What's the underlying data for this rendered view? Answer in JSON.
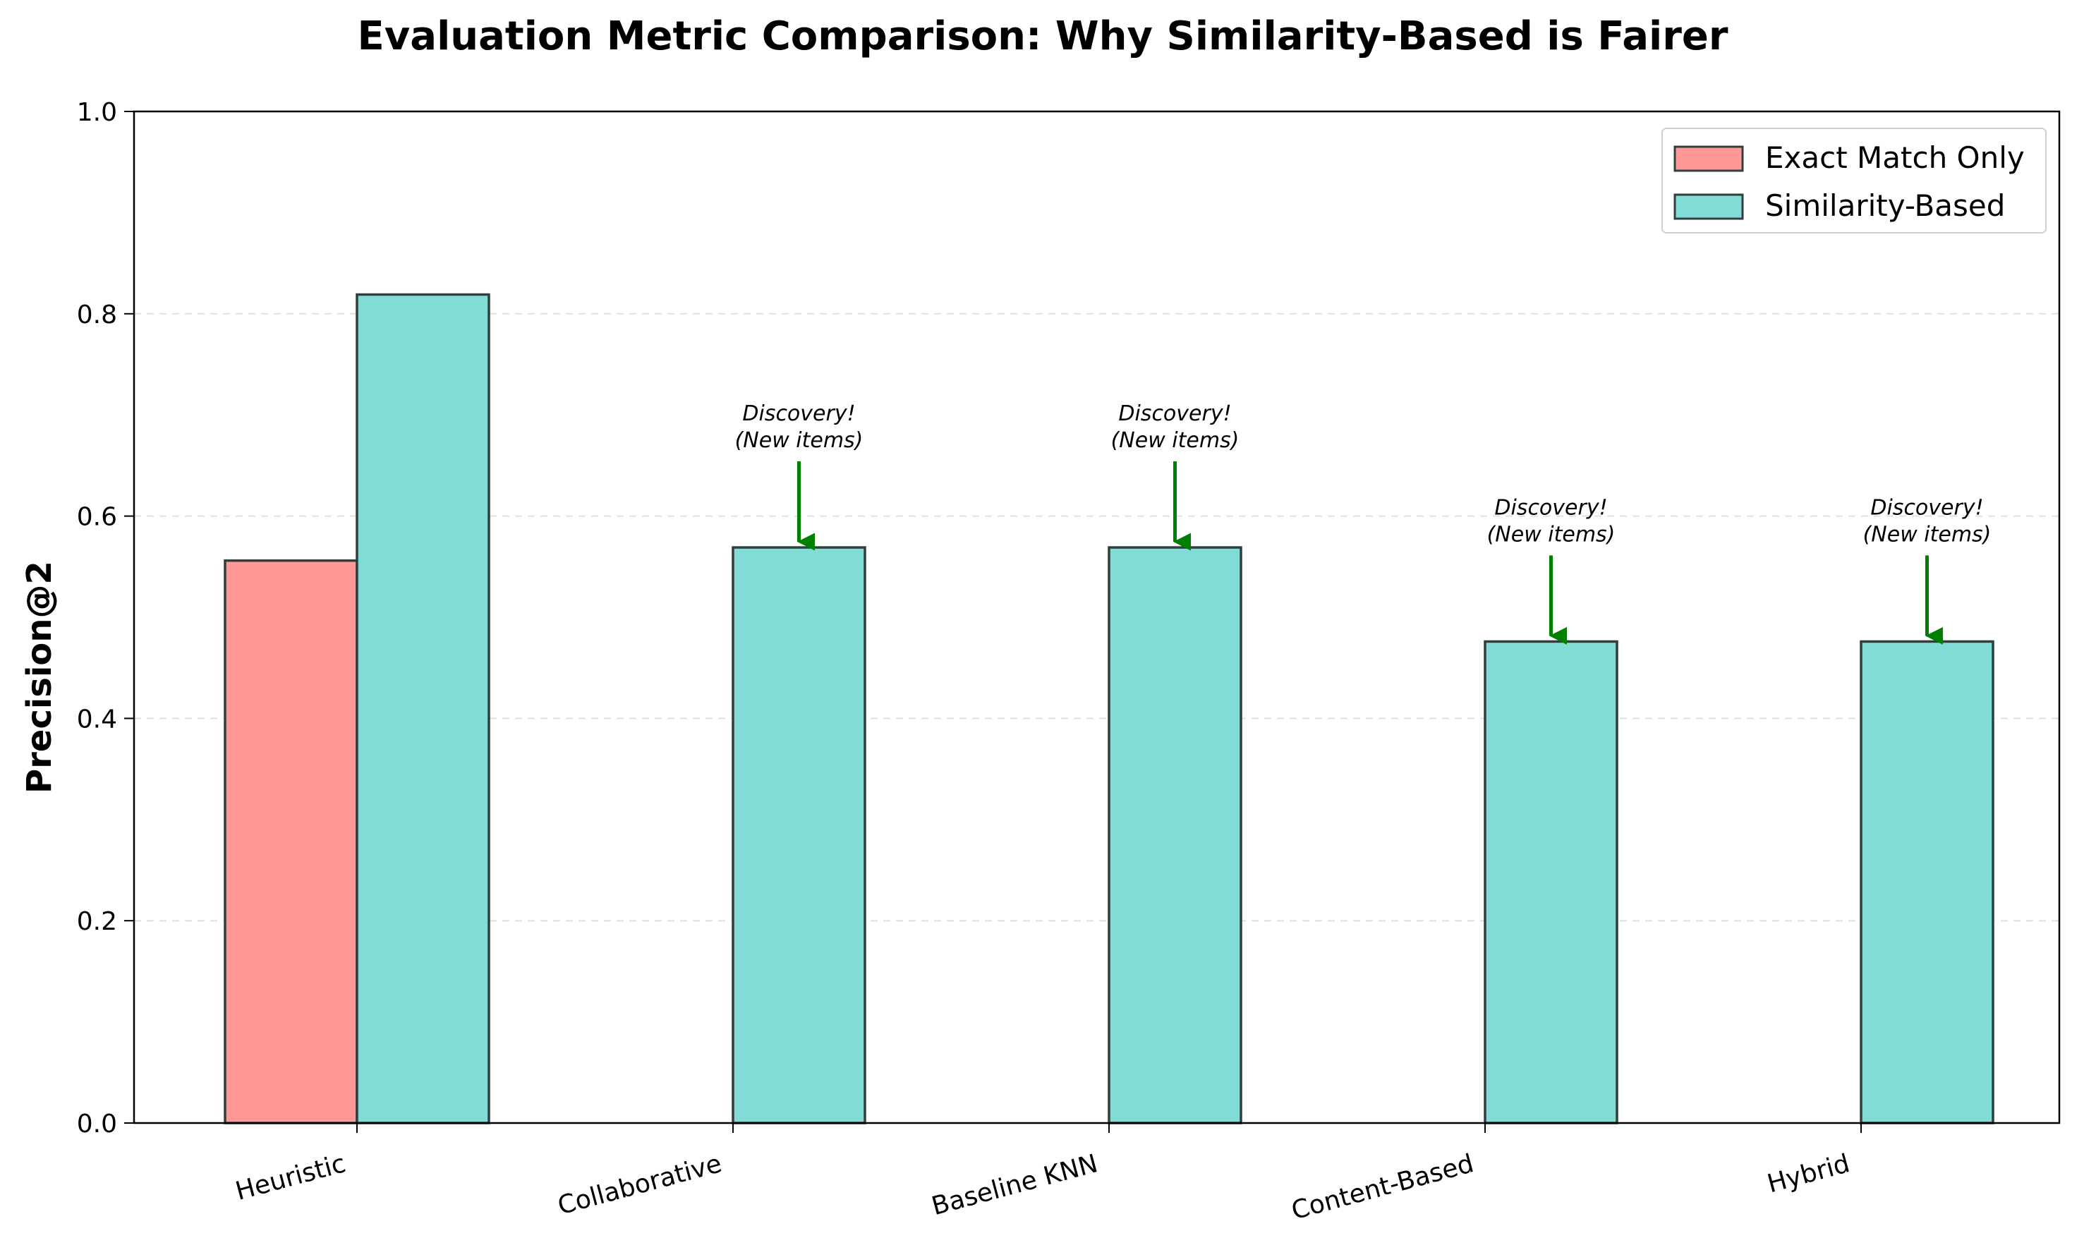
{
  "chart_data": {
    "type": "bar",
    "title": "Evaluation Metric Comparison: Why Similarity-Based is Fairer",
    "xlabel": "",
    "ylabel": "Precision@2",
    "ylim": [
      0,
      1.0
    ],
    "yticks": [
      "0.0",
      "0.2",
      "0.4",
      "0.6",
      "0.8",
      "1.0"
    ],
    "grid": "y-dashed",
    "legend_position": "top-right",
    "categories": [
      "Heuristic",
      "Collaborative",
      "Baseline KNN",
      "Content-Based",
      "Hybrid"
    ],
    "series": [
      {
        "name": "Exact Match Only",
        "color": "#ff9896",
        "values": [
          0.556,
          0.0,
          0.0,
          0.0,
          0.0
        ]
      },
      {
        "name": "Similarity-Based",
        "color": "#82dbd4",
        "values": [
          0.819,
          0.569,
          0.569,
          0.476,
          0.476
        ]
      }
    ],
    "annotations": [
      {
        "category": "Collaborative",
        "lines": [
          "Discovery!",
          "(New items)"
        ],
        "arrow_color": "#008000"
      },
      {
        "category": "Baseline KNN",
        "lines": [
          "Discovery!",
          "(New items)"
        ],
        "arrow_color": "#008000"
      },
      {
        "category": "Content-Based",
        "lines": [
          "Discovery!",
          "(New items)"
        ],
        "arrow_color": "#008000"
      },
      {
        "category": "Hybrid",
        "lines": [
          "Discovery!",
          "(New items)"
        ],
        "arrow_color": "#008000"
      }
    ]
  }
}
